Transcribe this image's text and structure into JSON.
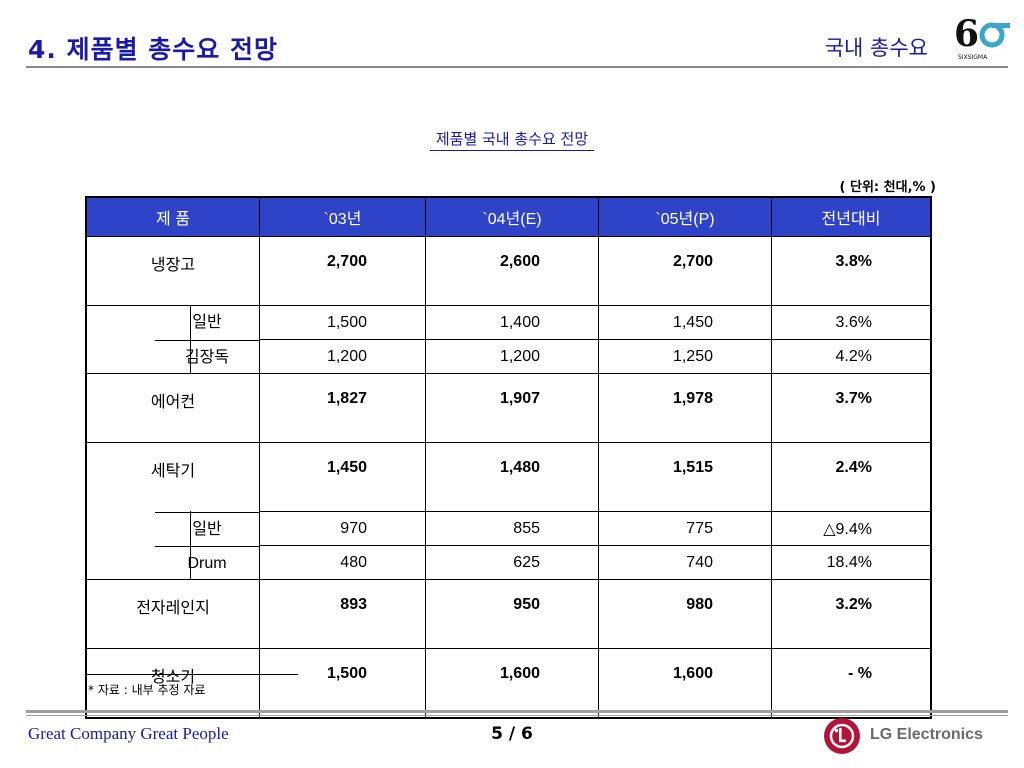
{
  "header": {
    "title": "4. 제품별 총수요 전망",
    "section": "국내 총수요",
    "logo_text": "SIXSIGMA"
  },
  "table_title": "제품별 국내 총수요 전망",
  "unit_note": "( 단위: 천대,% )",
  "table": {
    "headers": [
      "제  품",
      "`03년",
      "`04년(E)",
      "`05년(P)",
      "전년대비"
    ],
    "rows": [
      {
        "kind": "main",
        "name": "냉장고",
        "values": [
          "2,700",
          "2,600",
          "2,700"
        ],
        "rate": "3.8%"
      },
      {
        "kind": "sub",
        "name": "일반",
        "values": [
          "1,500",
          "1,400",
          "1,450"
        ],
        "rate": "3.6%"
      },
      {
        "kind": "sub",
        "name": "김장독",
        "values": [
          "1,200",
          "1,200",
          "1,250"
        ],
        "rate": "4.2%"
      },
      {
        "kind": "main",
        "name": "에어컨",
        "values": [
          "1,827",
          "1,907",
          "1,978"
        ],
        "rate": "3.7%"
      },
      {
        "kind": "main",
        "name": "세탁기",
        "values": [
          "1,450",
          "1,480",
          "1,515"
        ],
        "rate": "2.4%"
      },
      {
        "kind": "sub",
        "name": "일반",
        "values": [
          "970",
          "855",
          "775"
        ],
        "rate": "△9.4%"
      },
      {
        "kind": "sub",
        "name": "Drum",
        "values": [
          "480",
          "625",
          "740"
        ],
        "rate": "18.4%"
      },
      {
        "kind": "main",
        "name": "전자레인지",
        "values": [
          "893",
          "950",
          "980"
        ],
        "rate": "3.2%"
      },
      {
        "kind": "main",
        "name": "청소기",
        "values": [
          "1,500",
          "1,600",
          "1,600"
        ],
        "rate": "- %"
      }
    ]
  },
  "footnote": "* 자료 : 내부 추정 자료",
  "footer": {
    "tagline": "Great Company Great People",
    "page": "5 / 6",
    "brand": "LG Electronics"
  },
  "colors": {
    "title_blue": "#1a1aa8",
    "header_fill": "#2f43c8",
    "lg_red": "#b5123a"
  }
}
